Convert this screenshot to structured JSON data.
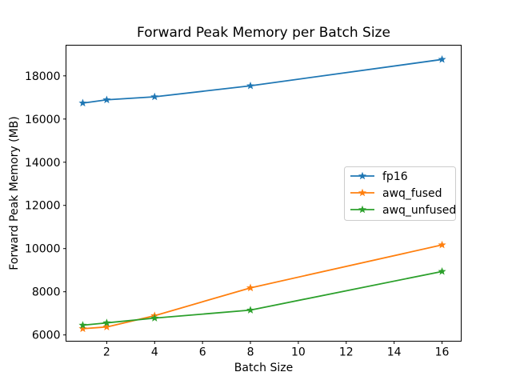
{
  "chart_data": {
    "type": "line",
    "title": "Forward Peak Memory per Batch Size",
    "xlabel": "Batch Size",
    "ylabel": "Forward Peak Memory (MB)",
    "x": [
      1,
      2,
      4,
      8,
      16
    ],
    "series": [
      {
        "name": "fp16",
        "color": "#1f77b4",
        "values": [
          16740,
          16890,
          17030,
          17540,
          18760
        ]
      },
      {
        "name": "awq_fused",
        "color": "#ff7f0e",
        "values": [
          6290,
          6370,
          6890,
          8180,
          10170
        ]
      },
      {
        "name": "awq_unfused",
        "color": "#2ca02c",
        "values": [
          6450,
          6560,
          6780,
          7150,
          8940
        ]
      }
    ],
    "marker": "star",
    "grid": false,
    "legend_position": "center right",
    "xticks": [
      2,
      4,
      6,
      8,
      10,
      12,
      14,
      16
    ],
    "yticks": [
      6000,
      8000,
      10000,
      12000,
      14000,
      16000,
      18000
    ],
    "xlim": [
      0.3,
      16.8
    ],
    "ylim": [
      5710,
      19420
    ]
  }
}
